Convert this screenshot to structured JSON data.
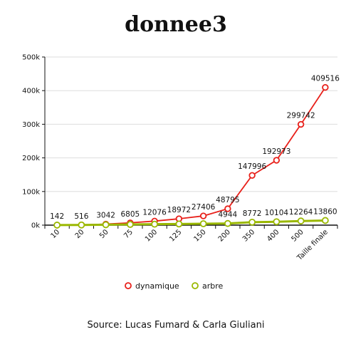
{
  "chart_data": {
    "type": "line",
    "title": "donnee3",
    "source": "Source: Lucas Fumard & Carla Giuliani",
    "categories": [
      "10",
      "20",
      "50",
      "75",
      "100",
      "125",
      "150",
      "200",
      "350",
      "400",
      "500",
      "Taille finale"
    ],
    "ylim": [
      0,
      500000
    ],
    "yticks": [
      0,
      100000,
      200000,
      300000,
      400000,
      500000
    ],
    "ytick_labels": [
      "0k",
      "100k",
      "200k",
      "300k",
      "400k",
      "500k"
    ],
    "grid": true,
    "legend_position": "bottom",
    "series": [
      {
        "name": "dynamique",
        "color": "#e8201a",
        "values": [
          142,
          516,
          3042,
          6805,
          12076,
          18972,
          27406,
          48795,
          147996,
          192973,
          299742,
          409516
        ],
        "labels": [
          "142",
          "516",
          "3042",
          "6805",
          "12076",
          "18972",
          "27406",
          "48795",
          "147996",
          "192973",
          "299742",
          "409516"
        ]
      },
      {
        "name": "arbre",
        "color": "#9ab800",
        "values": [
          142,
          516,
          1200,
          2100,
          2900,
          3500,
          4200,
          4944,
          8772,
          10104,
          12264,
          13860
        ],
        "labels": [
          "",
          "",
          "",
          "",
          "",
          "",
          "",
          "4944",
          "8772",
          "10104",
          "12264",
          "13860"
        ]
      }
    ]
  }
}
